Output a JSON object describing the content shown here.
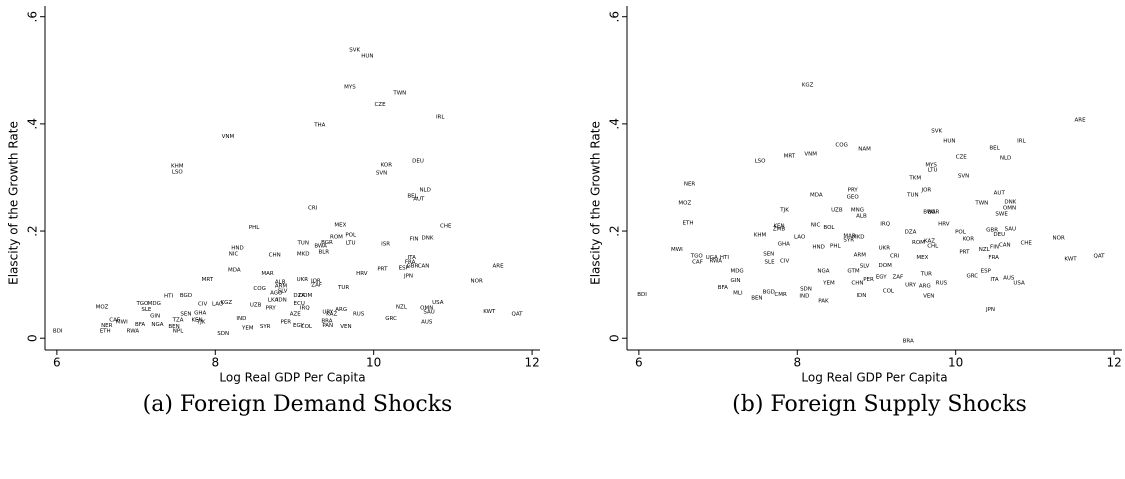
{
  "chart_data": [
    {
      "type": "scatter",
      "caption": "(a) Foreign Demand Shocks",
      "x_label": "Log Real GDP Per Capita",
      "y_label": "Elascity of the Growth Rate",
      "color": "#1a476f",
      "xlim": [
        5.85,
        12.1
      ],
      "ylim": [
        -0.022,
        0.62
      ],
      "xticks": [
        6,
        8,
        10,
        12
      ],
      "yticks": [
        0,
        {
          "value": 0.2,
          "label": ".2"
        },
        {
          "value": 0.4,
          "label": ".4"
        },
        {
          "value": 0.6,
          "label": ".6"
        }
      ],
      "point_labels": [
        "SVK",
        "HUN",
        "MYS",
        "TWN",
        "CZE",
        "IRL",
        "THA",
        "VNM",
        "DEU",
        "KOR",
        "KHM",
        "LSO",
        "SVN",
        "NLD",
        "BEL",
        "AUT",
        "CRI",
        "MEX",
        "CHE",
        "PHL",
        "POL",
        "ROM",
        "DNK",
        "FIN",
        "BGR",
        "TUN",
        "LTU",
        "ISR",
        "BWA",
        "HND",
        "BLR",
        "NIC",
        "MKD",
        "CHN",
        "ITA",
        "FRA",
        "GBR",
        "CAN",
        "ARE",
        "ESP",
        "PRT",
        "MDA",
        "MAR",
        "HRV",
        "JPN",
        "UKR",
        "MRT",
        "NOR",
        "JOR",
        "ALB",
        "ZAF",
        "ARM",
        "TUR",
        "COG",
        "SLV",
        "AGO",
        "DZA",
        "DOM",
        "BGD",
        "HTI",
        "LKA",
        "IDN",
        "USA",
        "KGZ",
        "ECU",
        "TGO",
        "MDG",
        "CIV",
        "LAO",
        "UZB",
        "MOZ",
        "NZL",
        "IRQ",
        "PRY",
        "OMN",
        "SLE",
        "ARG",
        "KWT",
        "SAU",
        "URY",
        "GHA",
        "SEN",
        "AZE",
        "KAZ",
        "RUS",
        "QAT",
        "GIN",
        "GRC",
        "IND",
        "CAF",
        "TZA",
        "KEN",
        "BRA",
        "MWI",
        "TJK",
        "PER",
        "AUS",
        "BFA",
        "NGA",
        "NER",
        "EGY",
        "PAN",
        "BEN",
        "SYR",
        "COL",
        "VEN",
        "YEM",
        "ETH",
        "RWA",
        "NPL",
        "BDI",
        "SDN"
      ],
      "x": [
        9.76,
        9.92,
        9.7,
        10.33,
        10.08,
        10.84,
        9.32,
        8.16,
        10.56,
        10.16,
        7.52,
        7.52,
        10.1,
        10.65,
        10.49,
        10.57,
        9.23,
        9.58,
        10.91,
        8.49,
        9.71,
        9.53,
        10.68,
        10.51,
        9.41,
        9.11,
        9.71,
        10.15,
        9.33,
        8.28,
        9.37,
        8.23,
        9.11,
        8.75,
        10.48,
        10.46,
        10.49,
        10.63,
        11.57,
        10.38,
        10.11,
        8.24,
        8.66,
        9.85,
        10.44,
        9.1,
        7.9,
        11.3,
        9.27,
        8.82,
        9.28,
        8.83,
        9.62,
        8.56,
        8.85,
        8.77,
        9.06,
        9.14,
        7.63,
        7.41,
        8.73,
        8.84,
        10.81,
        8.14,
        9.06,
        7.08,
        7.23,
        7.84,
        8.03,
        8.51,
        6.57,
        10.35,
        9.13,
        8.7,
        10.67,
        7.13,
        9.59,
        11.46,
        10.7,
        9.42,
        7.81,
        7.63,
        9.01,
        9.47,
        9.81,
        11.81,
        7.24,
        10.22,
        8.33,
        6.73,
        7.53,
        7.77,
        9.41,
        6.82,
        7.82,
        8.89,
        10.67,
        7.05,
        7.27,
        6.63,
        9.05,
        9.42,
        7.48,
        8.63,
        9.15,
        9.65,
        8.41,
        6.61,
        6.96,
        7.53,
        6.01,
        8.1
      ],
      "values": [
        0.538,
        0.527,
        0.469,
        0.458,
        0.436,
        0.413,
        0.398,
        0.376,
        0.331,
        0.323,
        0.321,
        0.31,
        0.308,
        0.277,
        0.265,
        0.26,
        0.243,
        0.211,
        0.209,
        0.207,
        0.193,
        0.189,
        0.187,
        0.185,
        0.179,
        0.178,
        0.178,
        0.176,
        0.172,
        0.168,
        0.161,
        0.157,
        0.157,
        0.155,
        0.151,
        0.142,
        0.135,
        0.135,
        0.135,
        0.131,
        0.129,
        0.127,
        0.121,
        0.121,
        0.116,
        0.11,
        0.11,
        0.107,
        0.107,
        0.105,
        0.099,
        0.097,
        0.095,
        0.093,
        0.088,
        0.084,
        0.08,
        0.08,
        0.08,
        0.079,
        0.071,
        0.071,
        0.067,
        0.067,
        0.065,
        0.065,
        0.065,
        0.064,
        0.064,
        0.062,
        0.058,
        0.058,
        0.056,
        0.056,
        0.056,
        0.054,
        0.054,
        0.05,
        0.049,
        0.049,
        0.047,
        0.045,
        0.045,
        0.045,
        0.045,
        0.045,
        0.041,
        0.037,
        0.037,
        0.034,
        0.034,
        0.034,
        0.032,
        0.03,
        0.03,
        0.03,
        0.03,
        0.026,
        0.026,
        0.024,
        0.024,
        0.024,
        0.022,
        0.022,
        0.022,
        0.022,
        0.019,
        0.013,
        0.013,
        0.013,
        0.013,
        0.009
      ]
    },
    {
      "type": "scatter",
      "caption": "(b) Foreign Supply Shocks",
      "x_label": "Log Real GDP Per Capita",
      "y_label": "Elascity of the Growth Rate",
      "color": "#1a476f",
      "xlim": [
        5.85,
        12.1
      ],
      "ylim": [
        -0.022,
        0.62
      ],
      "xticks": [
        6,
        8,
        10,
        12
      ],
      "yticks": [
        0,
        {
          "value": 0.2,
          "label": ".2"
        },
        {
          "value": 0.4,
          "label": ".4"
        },
        {
          "value": 0.6,
          "label": ".6"
        }
      ],
      "point_labels": [
        "KGZ",
        "ARE",
        "SVK",
        "HUN",
        "IRL",
        "COG",
        "BEL",
        "NAM",
        "VNM",
        "MRT",
        "LSO",
        "CZE",
        "NLD",
        "MYS",
        "LTU",
        "SVN",
        "TKM",
        "NER",
        "PRY",
        "JOR",
        "AUT",
        "TUN",
        "MDA",
        "GEO",
        "MOZ",
        "DNK",
        "TWN",
        "OMN",
        "TJK",
        "UZB",
        "MNG",
        "BGR",
        "SWE",
        "BWA",
        "ALB",
        "ETH",
        "KEN",
        "IRQ",
        "HRV",
        "NIC",
        "ZMB",
        "BOL",
        "GBR",
        "SAU",
        "DZA",
        "POL",
        "DEU",
        "KOR",
        "MAR",
        "MKD",
        "NOR",
        "KHM",
        "LAO",
        "SYR",
        "KAZ",
        "ROM",
        "CAN",
        "CHE",
        "GHA",
        "CHL",
        "HND",
        "PHL",
        "UKR",
        "FIN",
        "MWI",
        "NZL",
        "PRT",
        "ARM",
        "CRI",
        "TGO",
        "UGA",
        "HTI",
        "SEN",
        "MEX",
        "FRA",
        "KWT",
        "QAT",
        "CAF",
        "RWA",
        "SLE",
        "CIV",
        "SLV",
        "DOM",
        "MDG",
        "NGA",
        "GTM",
        "ESP",
        "TUR",
        "GRC",
        "EGY",
        "ZAF",
        "AUS",
        "GIN",
        "ITA",
        "PER",
        "USA",
        "YEM",
        "CHN",
        "RUS",
        "URY",
        "ARG",
        "BFA",
        "SDN",
        "COL",
        "BGD",
        "MLI",
        "BDI",
        "CMR",
        "IND",
        "IDN",
        "VEN",
        "BEN",
        "PAK",
        "JPN",
        "BRA"
      ],
      "x": [
        8.13,
        11.57,
        9.76,
        9.92,
        10.83,
        8.56,
        10.49,
        8.85,
        8.17,
        7.9,
        7.53,
        10.07,
        10.63,
        9.69,
        9.71,
        10.1,
        9.49,
        6.64,
        8.7,
        9.63,
        10.55,
        9.46,
        8.24,
        8.7,
        6.58,
        10.69,
        10.33,
        10.68,
        7.84,
        8.5,
        8.76,
        9.72,
        10.58,
        9.67,
        8.81,
        6.62,
        7.77,
        9.11,
        9.85,
        8.23,
        7.77,
        8.4,
        10.46,
        10.69,
        9.43,
        10.06,
        10.55,
        10.16,
        8.66,
        8.77,
        11.3,
        7.53,
        8.03,
        8.65,
        9.67,
        9.53,
        10.62,
        10.89,
        7.83,
        9.71,
        8.27,
        8.48,
        9.1,
        10.49,
        6.48,
        10.36,
        10.11,
        8.79,
        9.23,
        6.73,
        6.92,
        7.08,
        7.64,
        9.58,
        10.48,
        11.45,
        11.81,
        6.74,
        6.97,
        7.65,
        7.84,
        8.85,
        9.11,
        7.24,
        8.33,
        8.71,
        10.38,
        9.63,
        10.21,
        9.06,
        9.27,
        10.67,
        7.22,
        10.49,
        8.9,
        10.8,
        8.4,
        8.76,
        9.82,
        9.43,
        9.61,
        7.06,
        8.11,
        9.15,
        7.64,
        7.25,
        6.04,
        7.79,
        8.09,
        8.81,
        9.66,
        7.49,
        8.33,
        10.44,
        9.4
      ],
      "values": [
        0.473,
        0.407,
        0.387,
        0.368,
        0.368,
        0.361,
        0.355,
        0.353,
        0.344,
        0.34,
        0.331,
        0.338,
        0.336,
        0.323,
        0.314,
        0.303,
        0.299,
        0.288,
        0.277,
        0.277,
        0.271,
        0.267,
        0.267,
        0.264,
        0.252,
        0.254,
        0.252,
        0.243,
        0.239,
        0.239,
        0.239,
        0.236,
        0.232,
        0.236,
        0.228,
        0.215,
        0.209,
        0.213,
        0.213,
        0.211,
        0.204,
        0.207,
        0.202,
        0.204,
        0.198,
        0.198,
        0.194,
        0.185,
        0.191,
        0.189,
        0.187,
        0.193,
        0.189,
        0.183,
        0.181,
        0.179,
        0.174,
        0.178,
        0.176,
        0.172,
        0.17,
        0.172,
        0.168,
        0.17,
        0.166,
        0.166,
        0.161,
        0.155,
        0.153,
        0.153,
        0.151,
        0.151,
        0.157,
        0.151,
        0.151,
        0.148,
        0.153,
        0.142,
        0.144,
        0.142,
        0.144,
        0.135,
        0.136,
        0.125,
        0.125,
        0.125,
        0.125,
        0.12,
        0.116,
        0.114,
        0.114,
        0.112,
        0.108,
        0.11,
        0.11,
        0.103,
        0.103,
        0.103,
        0.103,
        0.099,
        0.097,
        0.095,
        0.092,
        0.088,
        0.086,
        0.084,
        0.082,
        0.082,
        0.079,
        0.08,
        0.079,
        0.075,
        0.069,
        0.054,
        -0.005
      ]
    }
  ]
}
